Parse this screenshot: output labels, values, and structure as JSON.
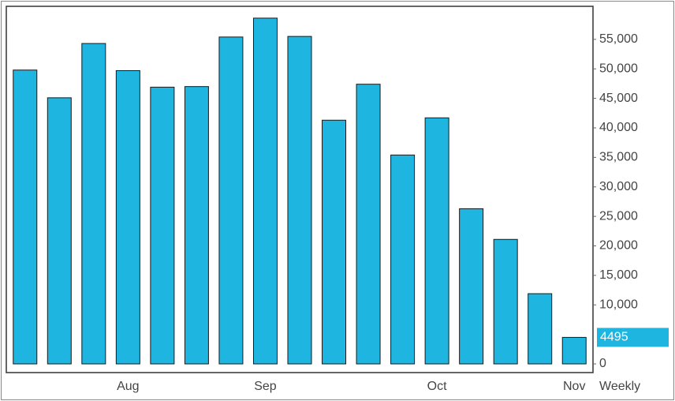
{
  "chart_data": {
    "type": "bar",
    "categories": [
      null,
      null,
      null,
      "Aug",
      null,
      null,
      null,
      "Sep",
      null,
      null,
      null,
      null,
      "Oct",
      null,
      null,
      null,
      "Nov"
    ],
    "values": [
      49800,
      45100,
      54300,
      49700,
      46900,
      47000,
      55400,
      58600,
      55500,
      41300,
      47400,
      35400,
      41700,
      26300,
      21100,
      11900,
      4495
    ],
    "color": "#1eb5e0",
    "ylim": [
      0,
      60600
    ],
    "yticks": [
      0,
      {
        "value": 10000,
        "label": "10,000"
      },
      {
        "value": 15000,
        "label": "15,000"
      },
      {
        "value": 20000,
        "label": "20,000"
      },
      {
        "value": 25000,
        "label": "25,000"
      },
      {
        "value": 30000,
        "label": "30,000"
      },
      {
        "value": 35000,
        "label": "35,000"
      },
      {
        "value": 40000,
        "label": "40,000"
      },
      {
        "value": 45000,
        "label": "45,000"
      },
      {
        "value": 50000,
        "label": "50,000"
      },
      {
        "value": 55000,
        "label": "55,000"
      }
    ],
    "period": "Weekly",
    "grid": false
  }
}
